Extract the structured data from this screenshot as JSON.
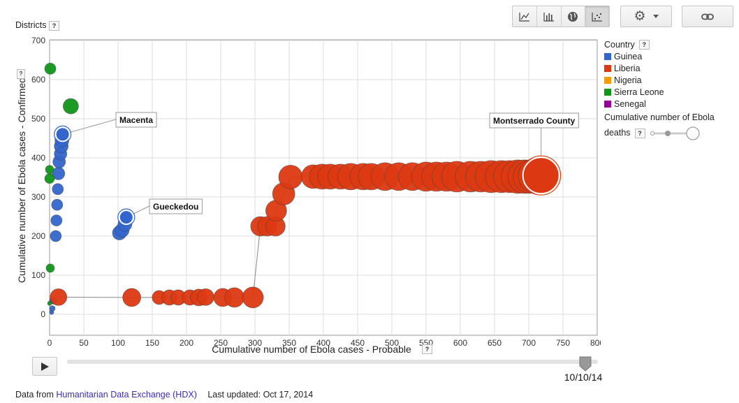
{
  "header": {
    "districts_label": "Districts",
    "help_glyph": "?"
  },
  "toolbar": {
    "views": [
      {
        "name": "line-chart-icon",
        "active": false
      },
      {
        "name": "bar-chart-icon",
        "active": false
      },
      {
        "name": "globe-icon",
        "active": false
      },
      {
        "name": "scatter-chart-icon",
        "active": true
      }
    ]
  },
  "legend": {
    "title": "Country",
    "items": [
      {
        "label": "Guinea",
        "color": "#3366cc"
      },
      {
        "label": "Liberia",
        "color": "#dc3912"
      },
      {
        "label": "Nigeria",
        "color": "#ff9900"
      },
      {
        "label": "Sierra Leone",
        "color": "#109618"
      },
      {
        "label": "Senegal",
        "color": "#990099"
      }
    ],
    "size_label_line1": "Cumulative number of Ebola",
    "size_label_line2": "deaths"
  },
  "player": {
    "date": "10/10/14",
    "progress": 0.976
  },
  "footer": {
    "data_from": "Data from",
    "source_link": "Humanitarian Data Exchange (HDX)",
    "updated": "Last updated: Oct 17, 2014"
  },
  "chart_data": {
    "type": "scatter",
    "xlabel": "Cumulative number of Ebola cases - Probable",
    "ylabel": "Cumulative number of Ebola cases - Confirmed",
    "xlim": [
      0,
      800
    ],
    "ylim": [
      0,
      700
    ],
    "xticks": [
      0,
      50,
      100,
      150,
      200,
      250,
      300,
      350,
      400,
      450,
      500,
      550,
      600,
      650,
      700,
      750,
      800
    ],
    "yticks": [
      0,
      100,
      200,
      300,
      400,
      500,
      600,
      700
    ],
    "grid": true,
    "legend_position": "right",
    "series": [
      {
        "name": "Guinea",
        "color": "#3366cc",
        "points": [
          {
            "x": 3,
            "y": 5,
            "size": 3
          },
          {
            "x": 4,
            "y": 15,
            "size": 4
          },
          {
            "x": 5,
            "y": 35,
            "size": 5
          },
          {
            "x": 9,
            "y": 200,
            "size": 8
          },
          {
            "x": 10,
            "y": 240,
            "size": 8
          },
          {
            "x": 11,
            "y": 280,
            "size": 8
          },
          {
            "x": 12,
            "y": 320,
            "size": 8
          },
          {
            "x": 13,
            "y": 360,
            "size": 9
          },
          {
            "x": 14,
            "y": 390,
            "size": 9
          },
          {
            "x": 16,
            "y": 410,
            "size": 9
          },
          {
            "x": 17,
            "y": 430,
            "size": 10
          },
          {
            "x": 18,
            "y": 445,
            "size": 10
          },
          {
            "x": 19,
            "y": 460,
            "size": 10,
            "label": "Macenta"
          },
          {
            "x": 102,
            "y": 208,
            "size": 10
          },
          {
            "x": 106,
            "y": 215,
            "size": 10
          },
          {
            "x": 110,
            "y": 230,
            "size": 10
          },
          {
            "x": 112,
            "y": 248,
            "size": 10,
            "label": "Gueckedou"
          }
        ]
      },
      {
        "name": "Sierra Leone",
        "color": "#109618",
        "points": [
          {
            "x": 1,
            "y": 628,
            "size": 8
          },
          {
            "x": 31,
            "y": 532,
            "size": 11
          },
          {
            "x": 0,
            "y": 370,
            "size": 6
          },
          {
            "x": 0,
            "y": 347,
            "size": 7
          },
          {
            "x": 1,
            "y": 118,
            "size": 6
          },
          {
            "x": 0,
            "y": 28,
            "size": 3
          }
        ]
      },
      {
        "name": "Liberia",
        "color": "#dc3912",
        "points": [
          {
            "x": 13,
            "y": 44,
            "size": 12
          },
          {
            "x": 120,
            "y": 43,
            "size": 13
          },
          {
            "x": 160,
            "y": 43,
            "size": 10
          },
          {
            "x": 175,
            "y": 43,
            "size": 11
          },
          {
            "x": 188,
            "y": 43,
            "size": 11
          },
          {
            "x": 205,
            "y": 43,
            "size": 11
          },
          {
            "x": 218,
            "y": 43,
            "size": 12
          },
          {
            "x": 228,
            "y": 44,
            "size": 12
          },
          {
            "x": 253,
            "y": 43,
            "size": 13
          },
          {
            "x": 270,
            "y": 43,
            "size": 14
          },
          {
            "x": 297,
            "y": 43,
            "size": 15
          },
          {
            "x": 308,
            "y": 225,
            "size": 14
          },
          {
            "x": 318,
            "y": 225,
            "size": 14
          },
          {
            "x": 330,
            "y": 225,
            "size": 14
          },
          {
            "x": 331,
            "y": 265,
            "size": 15
          },
          {
            "x": 342,
            "y": 308,
            "size": 16
          },
          {
            "x": 352,
            "y": 351,
            "size": 17
          },
          {
            "x": 385,
            "y": 352,
            "size": 17
          },
          {
            "x": 398,
            "y": 352,
            "size": 18
          },
          {
            "x": 410,
            "y": 352,
            "size": 18
          },
          {
            "x": 425,
            "y": 352,
            "size": 18
          },
          {
            "x": 440,
            "y": 352,
            "size": 19
          },
          {
            "x": 458,
            "y": 352,
            "size": 19
          },
          {
            "x": 470,
            "y": 352,
            "size": 19
          },
          {
            "x": 490,
            "y": 352,
            "size": 20
          },
          {
            "x": 510,
            "y": 352,
            "size": 20
          },
          {
            "x": 530,
            "y": 352,
            "size": 20
          },
          {
            "x": 550,
            "y": 352,
            "size": 21
          },
          {
            "x": 565,
            "y": 352,
            "size": 21
          },
          {
            "x": 580,
            "y": 352,
            "size": 21
          },
          {
            "x": 595,
            "y": 352,
            "size": 22
          },
          {
            "x": 615,
            "y": 352,
            "size": 22
          },
          {
            "x": 630,
            "y": 352,
            "size": 22
          },
          {
            "x": 645,
            "y": 352,
            "size": 23
          },
          {
            "x": 660,
            "y": 352,
            "size": 23
          },
          {
            "x": 672,
            "y": 352,
            "size": 23
          },
          {
            "x": 684,
            "y": 352,
            "size": 24
          },
          {
            "x": 694,
            "y": 352,
            "size": 24
          },
          {
            "x": 702,
            "y": 352,
            "size": 24
          },
          {
            "x": 710,
            "y": 354,
            "size": 25
          },
          {
            "x": 718,
            "y": 355,
            "size": 26,
            "label": "Montserrado County"
          }
        ]
      }
    ]
  }
}
